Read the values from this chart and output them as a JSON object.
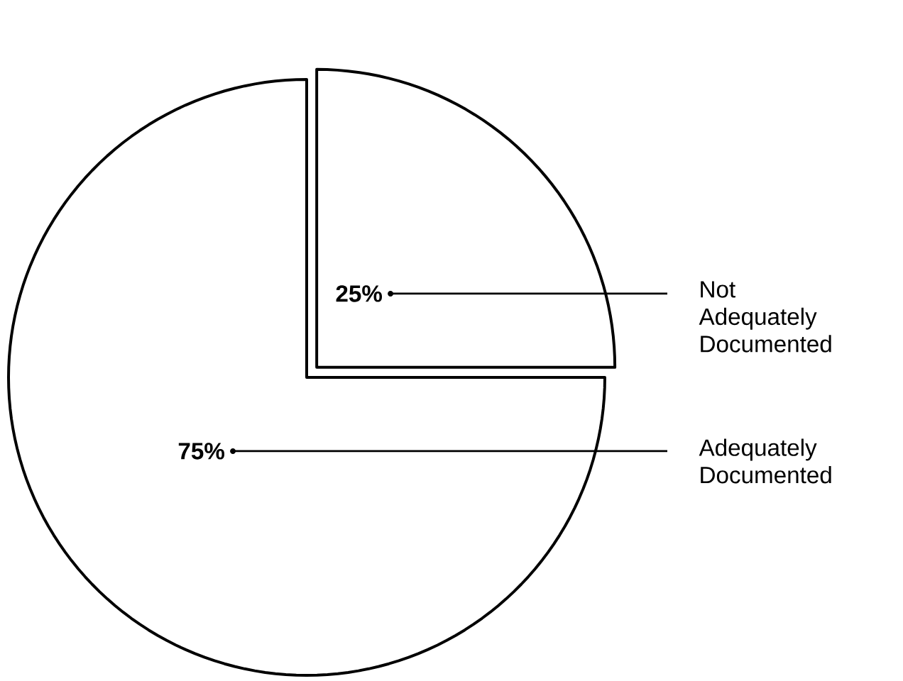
{
  "chart_data": {
    "type": "pie",
    "categories": [
      "Not Adequately Documented",
      "Adequately Documented"
    ],
    "values": [
      25,
      75
    ],
    "colors": [
      "#ffffff",
      "#ffffff"
    ],
    "value_labels": [
      "25%",
      "75%"
    ]
  }
}
